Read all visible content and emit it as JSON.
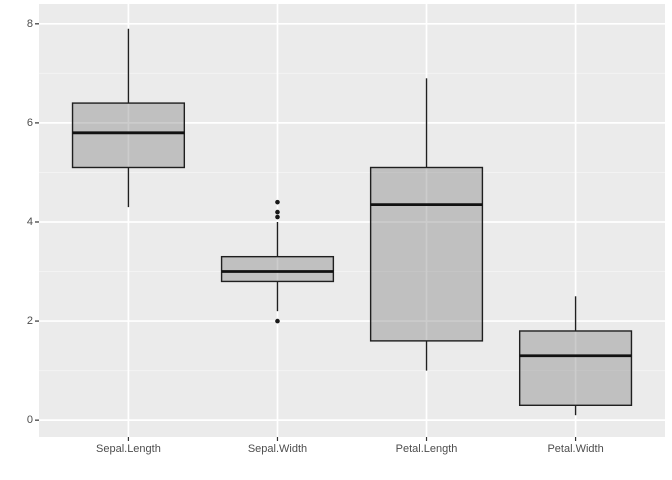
{
  "chart_data": {
    "type": "boxplot",
    "title": "",
    "xlabel": "",
    "ylabel": "",
    "legend": "none",
    "grid": "on",
    "categories": [
      "Sepal.Length",
      "Sepal.Width",
      "Petal.Length",
      "Petal.Width"
    ],
    "x_axis": {
      "positions": [
        1,
        2,
        3,
        4
      ],
      "range": [
        0.4,
        4.6
      ]
    },
    "y_axis": {
      "ticks": [
        0,
        2,
        4,
        6,
        8
      ],
      "tick_labels": [
        "0",
        "2",
        "4",
        "6",
        "8"
      ],
      "minor_ticks": [
        1,
        3,
        5,
        7
      ],
      "range": [
        -0.34,
        8.4
      ]
    },
    "box_width": 0.75,
    "series": [
      {
        "category": "Sepal.Length",
        "whisker_low": 4.3,
        "q1": 5.1,
        "median": 5.8,
        "q3": 6.4,
        "whisker_high": 7.9,
        "outliers": []
      },
      {
        "category": "Sepal.Width",
        "whisker_low": 2.2,
        "q1": 2.8,
        "median": 3.0,
        "q3": 3.3,
        "whisker_high": 4.0,
        "outliers": [
          4.4,
          4.2,
          4.1,
          2.0
        ]
      },
      {
        "category": "Petal.Length",
        "whisker_low": 1.0,
        "q1": 1.6,
        "median": 4.35,
        "q3": 5.1,
        "whisker_high": 6.9,
        "outliers": []
      },
      {
        "category": "Petal.Width",
        "whisker_low": 0.1,
        "q1": 0.3,
        "median": 1.3,
        "q3": 1.8,
        "whisker_high": 2.5,
        "outliers": []
      }
    ],
    "colors": {
      "background": "#FFFFFF",
      "panel_bg": "#EBEBEB",
      "grid_major": "#FFFFFF",
      "grid_minor": "#F3F3F3",
      "box_fill": "rgba(128,128,128,0.40)",
      "box_border": "#1F1F1F",
      "median": "#111111",
      "whisker": "#1F1F1F",
      "outlier": "#191919",
      "tick_mark": "#333333",
      "axis_text": "#4D4D4D"
    }
  }
}
